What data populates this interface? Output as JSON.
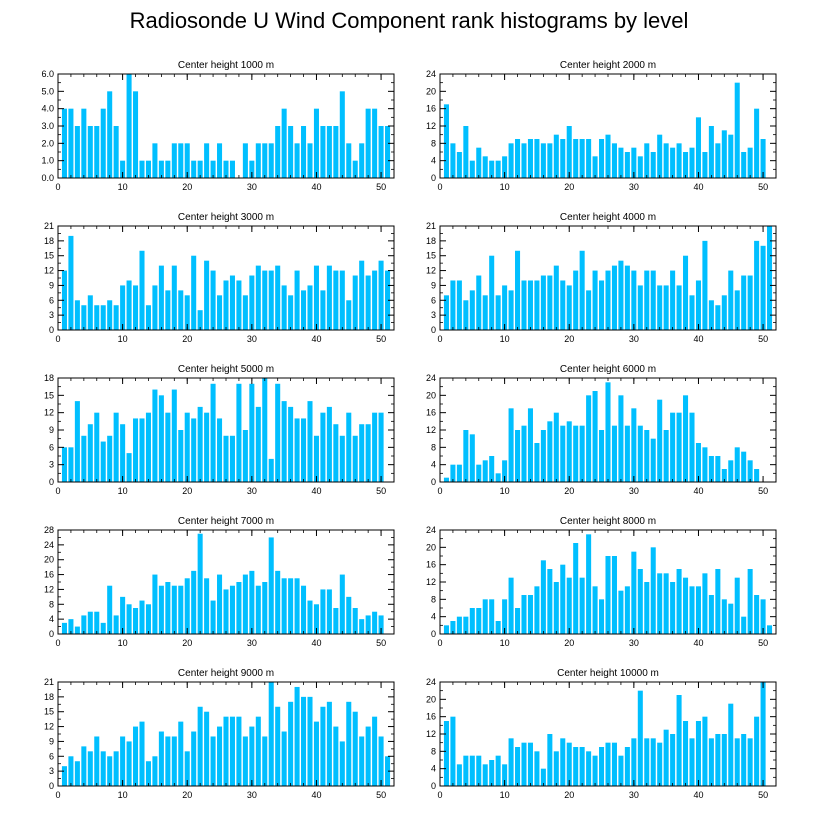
{
  "title": "Radiosonde U Wind Component rank histograms by level",
  "colors": {
    "bar": "#00BFFF",
    "axis": "#000000",
    "background": "#ffffff"
  },
  "chart_data": [
    {
      "type": "bar",
      "title": "Center height 1000 m",
      "xlim": [
        0,
        52
      ],
      "ylim": [
        0,
        6
      ],
      "xticks": [
        0,
        10,
        20,
        30,
        40,
        50
      ],
      "yticks": [
        0,
        1,
        2,
        3,
        4,
        5,
        6
      ],
      "ytick_labels": [
        "0.0",
        "1.0",
        "2.0",
        "3.0",
        "4.0",
        "5.0",
        "6.0"
      ],
      "x": [
        0,
        1,
        2,
        3,
        4,
        5,
        6,
        7,
        8,
        9,
        10,
        11,
        12,
        13,
        14,
        15,
        16,
        17,
        18,
        19,
        20,
        21,
        22,
        23,
        24,
        25,
        26,
        27,
        28,
        29,
        30,
        31,
        32,
        33,
        34,
        35,
        36,
        37,
        38,
        39,
        40,
        41,
        42,
        43,
        44,
        45,
        46,
        47,
        48,
        49,
        50,
        51
      ],
      "values": [
        0,
        4,
        4,
        3,
        4,
        3,
        3,
        4,
        5,
        3,
        1,
        6,
        5,
        1,
        1,
        2,
        1,
        1,
        2,
        2,
        2,
        1,
        1,
        2,
        1,
        2,
        1,
        1,
        0,
        2,
        1,
        2,
        2,
        2,
        3,
        4,
        3,
        2,
        3,
        2,
        4,
        3,
        3,
        3,
        5,
        2,
        1,
        2,
        4,
        4,
        3,
        3
      ]
    },
    {
      "type": "bar",
      "title": "Center height 2000 m",
      "xlim": [
        0,
        52
      ],
      "ylim": [
        0,
        24
      ],
      "xticks": [
        0,
        10,
        20,
        30,
        40,
        50
      ],
      "yticks": [
        0,
        4,
        8,
        12,
        16,
        20,
        24
      ],
      "ytick_labels": [
        "0",
        "4",
        "8",
        "12",
        "16",
        "20",
        "24"
      ],
      "x": [
        0,
        1,
        2,
        3,
        4,
        5,
        6,
        7,
        8,
        9,
        10,
        11,
        12,
        13,
        14,
        15,
        16,
        17,
        18,
        19,
        20,
        21,
        22,
        23,
        24,
        25,
        26,
        27,
        28,
        29,
        30,
        31,
        32,
        33,
        34,
        35,
        36,
        37,
        38,
        39,
        40,
        41,
        42,
        43,
        44,
        45,
        46,
        47,
        48,
        49,
        50,
        51
      ],
      "values": [
        0,
        17,
        8,
        6,
        12,
        4,
        7,
        5,
        4,
        4,
        5,
        8,
        9,
        8,
        9,
        9,
        8,
        8,
        10,
        9,
        12,
        9,
        9,
        9,
        5,
        9,
        10,
        8,
        7,
        6,
        7,
        5,
        8,
        6,
        10,
        8,
        7,
        8,
        6,
        7,
        14,
        6,
        12,
        8,
        11,
        10,
        22,
        6,
        7,
        16,
        9,
        0
      ]
    },
    {
      "type": "bar",
      "title": "Center height 3000 m",
      "xlim": [
        0,
        52
      ],
      "ylim": [
        0,
        21
      ],
      "xticks": [
        0,
        10,
        20,
        30,
        40,
        50
      ],
      "yticks": [
        0,
        3,
        6,
        9,
        12,
        15,
        18,
        21
      ],
      "ytick_labels": [
        "0",
        "3",
        "6",
        "9",
        "12",
        "15",
        "18",
        "21"
      ],
      "x": [
        0,
        1,
        2,
        3,
        4,
        5,
        6,
        7,
        8,
        9,
        10,
        11,
        12,
        13,
        14,
        15,
        16,
        17,
        18,
        19,
        20,
        21,
        22,
        23,
        24,
        25,
        26,
        27,
        28,
        29,
        30,
        31,
        32,
        33,
        34,
        35,
        36,
        37,
        38,
        39,
        40,
        41,
        42,
        43,
        44,
        45,
        46,
        47,
        48,
        49,
        50,
        51
      ],
      "values": [
        0,
        12,
        19,
        6,
        5,
        7,
        5,
        5,
        6,
        5,
        9,
        10,
        9,
        16,
        5,
        9,
        13,
        8,
        13,
        8,
        7,
        15,
        4,
        14,
        12,
        7,
        10,
        11,
        10,
        7,
        11,
        13,
        12,
        12,
        13,
        9,
        7,
        12,
        8,
        9,
        13,
        8,
        13,
        12,
        12,
        6,
        11,
        14,
        11,
        12,
        14,
        12
      ]
    },
    {
      "type": "bar",
      "title": "Center height 4000 m",
      "xlim": [
        0,
        52
      ],
      "ylim": [
        0,
        21
      ],
      "xticks": [
        0,
        10,
        20,
        30,
        40,
        50
      ],
      "yticks": [
        0,
        3,
        6,
        9,
        12,
        15,
        18,
        21
      ],
      "ytick_labels": [
        "0",
        "3",
        "6",
        "9",
        "12",
        "15",
        "18",
        "21"
      ],
      "x": [
        0,
        1,
        2,
        3,
        4,
        5,
        6,
        7,
        8,
        9,
        10,
        11,
        12,
        13,
        14,
        15,
        16,
        17,
        18,
        19,
        20,
        21,
        22,
        23,
        24,
        25,
        26,
        27,
        28,
        29,
        30,
        31,
        32,
        33,
        34,
        35,
        36,
        37,
        38,
        39,
        40,
        41,
        42,
        43,
        44,
        45,
        46,
        47,
        48,
        49,
        50,
        51
      ],
      "values": [
        0,
        7,
        10,
        10,
        6,
        8,
        11,
        7,
        15,
        7,
        9,
        8,
        16,
        10,
        10,
        10,
        11,
        11,
        13,
        10,
        9,
        12,
        16,
        8,
        12,
        10,
        12,
        13,
        14,
        13,
        12,
        9,
        12,
        12,
        9,
        9,
        12,
        9,
        15,
        7,
        10,
        18,
        6,
        5,
        7,
        12,
        8,
        11,
        11,
        18,
        17,
        21
      ]
    },
    {
      "type": "bar",
      "title": "Center height 5000 m",
      "xlim": [
        0,
        52
      ],
      "ylim": [
        0,
        18
      ],
      "xticks": [
        0,
        10,
        20,
        30,
        40,
        50
      ],
      "yticks": [
        0,
        3,
        6,
        9,
        12,
        15,
        18
      ],
      "ytick_labels": [
        "0",
        "3",
        "6",
        "9",
        "12",
        "15",
        "18"
      ],
      "x": [
        0,
        1,
        2,
        3,
        4,
        5,
        6,
        7,
        8,
        9,
        10,
        11,
        12,
        13,
        14,
        15,
        16,
        17,
        18,
        19,
        20,
        21,
        22,
        23,
        24,
        25,
        26,
        27,
        28,
        29,
        30,
        31,
        32,
        33,
        34,
        35,
        36,
        37,
        38,
        39,
        40,
        41,
        42,
        43,
        44,
        45,
        46,
        47,
        48,
        49,
        50,
        51
      ],
      "values": [
        0,
        6,
        6,
        14,
        8,
        10,
        12,
        7,
        8,
        12,
        10,
        5,
        11,
        11,
        12,
        16,
        15,
        12,
        16,
        9,
        12,
        11,
        13,
        12,
        17,
        11,
        8,
        8,
        17,
        9,
        17,
        13,
        18,
        4,
        17,
        14,
        13,
        11,
        11,
        14,
        8,
        12,
        13,
        10,
        8,
        12,
        8,
        10,
        10,
        12,
        12,
        0
      ]
    },
    {
      "type": "bar",
      "title": "Center height 6000 m",
      "xlim": [
        0,
        52
      ],
      "ylim": [
        0,
        24
      ],
      "xticks": [
        0,
        10,
        20,
        30,
        40,
        50
      ],
      "yticks": [
        0,
        4,
        8,
        12,
        16,
        20,
        24
      ],
      "ytick_labels": [
        "0",
        "4",
        "8",
        "12",
        "16",
        "20",
        "24"
      ],
      "x": [
        0,
        1,
        2,
        3,
        4,
        5,
        6,
        7,
        8,
        9,
        10,
        11,
        12,
        13,
        14,
        15,
        16,
        17,
        18,
        19,
        20,
        21,
        22,
        23,
        24,
        25,
        26,
        27,
        28,
        29,
        30,
        31,
        32,
        33,
        34,
        35,
        36,
        37,
        38,
        39,
        40,
        41,
        42,
        43,
        44,
        45,
        46,
        47,
        48,
        49,
        50,
        51
      ],
      "values": [
        0,
        1,
        4,
        4,
        12,
        11,
        4,
        5,
        6,
        2,
        5,
        17,
        12,
        13,
        17,
        9,
        12,
        14,
        16,
        13,
        14,
        13,
        13,
        20,
        21,
        12,
        23,
        13,
        20,
        13,
        17,
        13,
        12,
        10,
        19,
        12,
        16,
        16,
        20,
        16,
        9,
        8,
        6,
        6,
        3,
        5,
        8,
        7,
        5,
        3,
        0,
        0
      ]
    },
    {
      "type": "bar",
      "title": "Center height 7000 m",
      "xlim": [
        0,
        52
      ],
      "ylim": [
        0,
        28
      ],
      "xticks": [
        0,
        10,
        20,
        30,
        40,
        50
      ],
      "yticks": [
        0,
        4,
        8,
        12,
        16,
        20,
        24,
        28
      ],
      "ytick_labels": [
        "0",
        "4",
        "8",
        "12",
        "16",
        "20",
        "24",
        "28"
      ],
      "x": [
        0,
        1,
        2,
        3,
        4,
        5,
        6,
        7,
        8,
        9,
        10,
        11,
        12,
        13,
        14,
        15,
        16,
        17,
        18,
        19,
        20,
        21,
        22,
        23,
        24,
        25,
        26,
        27,
        28,
        29,
        30,
        31,
        32,
        33,
        34,
        35,
        36,
        37,
        38,
        39,
        40,
        41,
        42,
        43,
        44,
        45,
        46,
        47,
        48,
        49,
        50,
        51
      ],
      "values": [
        0,
        3,
        4,
        2,
        5,
        6,
        6,
        3,
        13,
        5,
        10,
        8,
        7,
        9,
        8,
        16,
        13,
        14,
        13,
        13,
        15,
        17,
        27,
        15,
        9,
        16,
        12,
        13,
        14,
        16,
        17,
        13,
        14,
        26,
        17,
        15,
        15,
        15,
        13,
        9,
        8,
        12,
        12,
        7,
        16,
        10,
        7,
        4,
        5,
        6,
        5,
        0
      ]
    },
    {
      "type": "bar",
      "title": "Center height 8000 m",
      "xlim": [
        0,
        52
      ],
      "ylim": [
        0,
        24
      ],
      "xticks": [
        0,
        10,
        20,
        30,
        40,
        50
      ],
      "yticks": [
        0,
        4,
        8,
        12,
        16,
        20,
        24
      ],
      "ytick_labels": [
        "0",
        "4",
        "8",
        "12",
        "16",
        "20",
        "24"
      ],
      "x": [
        0,
        1,
        2,
        3,
        4,
        5,
        6,
        7,
        8,
        9,
        10,
        11,
        12,
        13,
        14,
        15,
        16,
        17,
        18,
        19,
        20,
        21,
        22,
        23,
        24,
        25,
        26,
        27,
        28,
        29,
        30,
        31,
        32,
        33,
        34,
        35,
        36,
        37,
        38,
        39,
        40,
        41,
        42,
        43,
        44,
        45,
        46,
        47,
        48,
        49,
        50,
        51
      ],
      "values": [
        0,
        2,
        3,
        4,
        4,
        6,
        6,
        8,
        8,
        3,
        8,
        13,
        6,
        9,
        9,
        11,
        17,
        15,
        12,
        16,
        13,
        21,
        13,
        23,
        11,
        8,
        18,
        18,
        10,
        11,
        19,
        15,
        12,
        20,
        14,
        14,
        12,
        15,
        13,
        11,
        11,
        14,
        9,
        15,
        8,
        7,
        13,
        4,
        15,
        9,
        8,
        2
      ]
    },
    {
      "type": "bar",
      "title": "Center height 9000 m",
      "xlim": [
        0,
        52
      ],
      "ylim": [
        0,
        21
      ],
      "xticks": [
        0,
        10,
        20,
        30,
        40,
        50
      ],
      "yticks": [
        0,
        3,
        6,
        9,
        12,
        15,
        18,
        21
      ],
      "ytick_labels": [
        "0",
        "3",
        "6",
        "9",
        "12",
        "15",
        "18",
        "21"
      ],
      "x": [
        0,
        1,
        2,
        3,
        4,
        5,
        6,
        7,
        8,
        9,
        10,
        11,
        12,
        13,
        14,
        15,
        16,
        17,
        18,
        19,
        20,
        21,
        22,
        23,
        24,
        25,
        26,
        27,
        28,
        29,
        30,
        31,
        32,
        33,
        34,
        35,
        36,
        37,
        38,
        39,
        40,
        41,
        42,
        43,
        44,
        45,
        46,
        47,
        48,
        49,
        50,
        51
      ],
      "values": [
        0,
        4,
        6,
        5,
        8,
        7,
        10,
        7,
        6,
        7,
        10,
        9,
        12,
        13,
        5,
        6,
        11,
        10,
        10,
        13,
        7,
        11,
        16,
        15,
        10,
        12,
        14,
        14,
        14,
        10,
        12,
        14,
        10,
        21,
        16,
        11,
        17,
        20,
        18,
        18,
        13,
        16,
        17,
        12,
        9,
        17,
        15,
        10,
        12,
        14,
        10,
        6
      ]
    },
    {
      "type": "bar",
      "title": "Center height 10000 m",
      "xlim": [
        0,
        52
      ],
      "ylim": [
        0,
        24
      ],
      "xticks": [
        0,
        10,
        20,
        30,
        40,
        50
      ],
      "yticks": [
        0,
        4,
        8,
        12,
        16,
        20,
        24
      ],
      "ytick_labels": [
        "0",
        "4",
        "8",
        "12",
        "16",
        "20",
        "24"
      ],
      "x": [
        0,
        1,
        2,
        3,
        4,
        5,
        6,
        7,
        8,
        9,
        10,
        11,
        12,
        13,
        14,
        15,
        16,
        17,
        18,
        19,
        20,
        21,
        22,
        23,
        24,
        25,
        26,
        27,
        28,
        29,
        30,
        31,
        32,
        33,
        34,
        35,
        36,
        37,
        38,
        39,
        40,
        41,
        42,
        43,
        44,
        45,
        46,
        47,
        48,
        49,
        50,
        51
      ],
      "values": [
        0,
        15,
        16,
        5,
        7,
        7,
        7,
        5,
        6,
        7,
        5,
        11,
        9,
        10,
        10,
        8,
        4,
        12,
        8,
        11,
        10,
        9,
        9,
        8,
        7,
        9,
        10,
        10,
        7,
        9,
        11,
        22,
        11,
        11,
        10,
        13,
        12,
        21,
        15,
        11,
        15,
        16,
        11,
        12,
        12,
        19,
        11,
        12,
        11,
        16,
        24,
        0
      ]
    }
  ]
}
